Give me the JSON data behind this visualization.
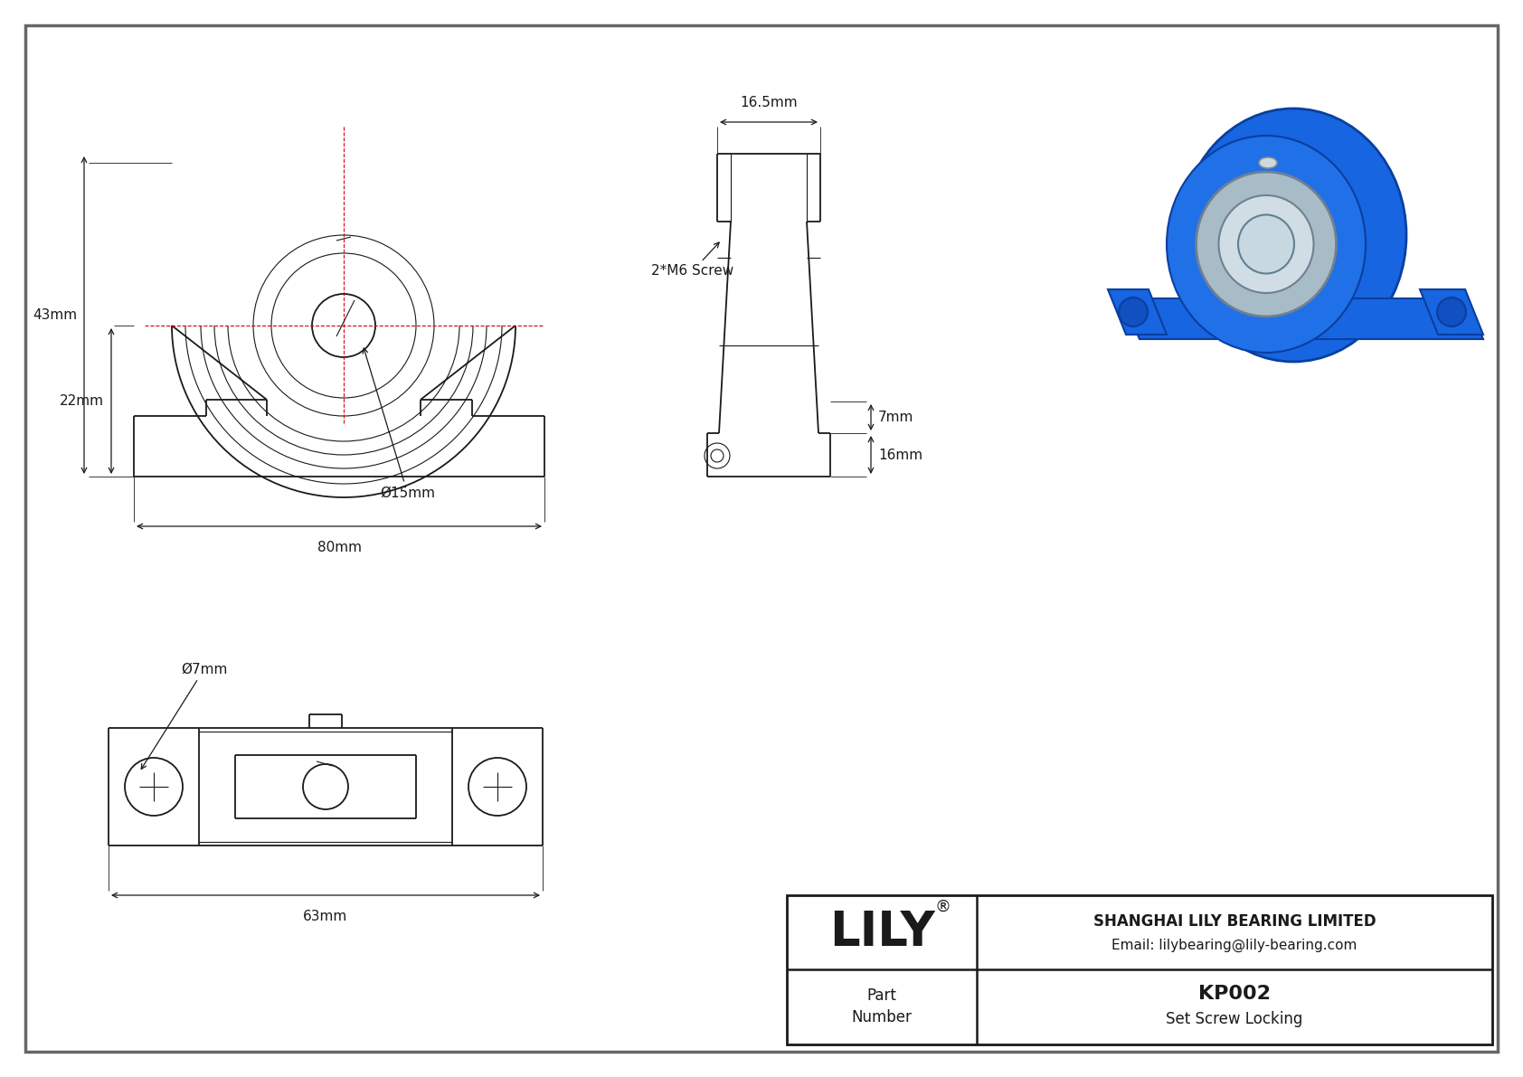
{
  "bg_color": "#ffffff",
  "line_color": "#1a1a1a",
  "red_line_color": "#dd0000",
  "blue_3d": "#1a6fe8",
  "title_block": {
    "company": "SHANGHAI LILY BEARING LIMITED",
    "email": "Email: lilybearing@lily-bearing.com",
    "part_number": "KP002",
    "part_type": "Set Screw Locking",
    "lily_text": "LILY"
  },
  "dims": {
    "width_80mm": "80mm",
    "height_43mm": "43mm",
    "height_22mm": "22mm",
    "bore_15mm": "Ø15mm",
    "side_7mm": "7mm",
    "side_16mm": "16mm",
    "side_16_5mm": "16.5mm",
    "top_63mm": "63mm",
    "top_bore_7mm": "Ø7mm",
    "screw_label": "2*M6 Screw"
  }
}
